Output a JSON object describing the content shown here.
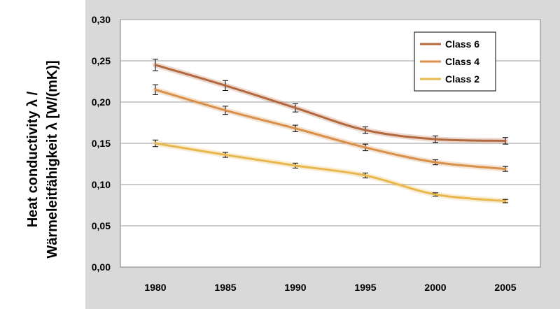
{
  "chart_data": {
    "type": "line",
    "title": "",
    "xlabel": "",
    "ylabel_lines": [
      "Heat conductivity λ /",
      "Wärmeleitfähigkeit λ  [W/(mK)]"
    ],
    "x": [
      1980,
      1985,
      1990,
      1995,
      2000,
      2005
    ],
    "x_tick_labels": [
      "1980",
      "1985",
      "1990",
      "1995",
      "2000",
      "2005"
    ],
    "ylim": [
      0,
      0.3
    ],
    "y_ticks": [
      0,
      0.05,
      0.1,
      0.15,
      0.2,
      0.25,
      0.3
    ],
    "y_tick_labels": [
      "0,00",
      "0,05",
      "0,10",
      "0,15",
      "0,20",
      "0,25",
      "0,30"
    ],
    "grid": "horizontal",
    "legend_position": "top-right",
    "series": [
      {
        "name": "Class 6",
        "color": "#b4683e",
        "values": [
          0.245,
          0.22,
          0.193,
          0.166,
          0.155,
          0.153
        ],
        "errors": [
          0.007,
          0.006,
          0.005,
          0.004,
          0.004,
          0.004
        ]
      },
      {
        "name": "Class 4",
        "color": "#d9904a",
        "values": [
          0.215,
          0.19,
          0.168,
          0.145,
          0.127,
          0.119
        ],
        "errors": [
          0.006,
          0.005,
          0.004,
          0.004,
          0.003,
          0.003
        ]
      },
      {
        "name": "Class 2",
        "color": "#e8b84e",
        "values": [
          0.15,
          0.136,
          0.123,
          0.111,
          0.088,
          0.08
        ],
        "errors": [
          0.004,
          0.003,
          0.003,
          0.003,
          0.002,
          0.002
        ]
      }
    ]
  }
}
